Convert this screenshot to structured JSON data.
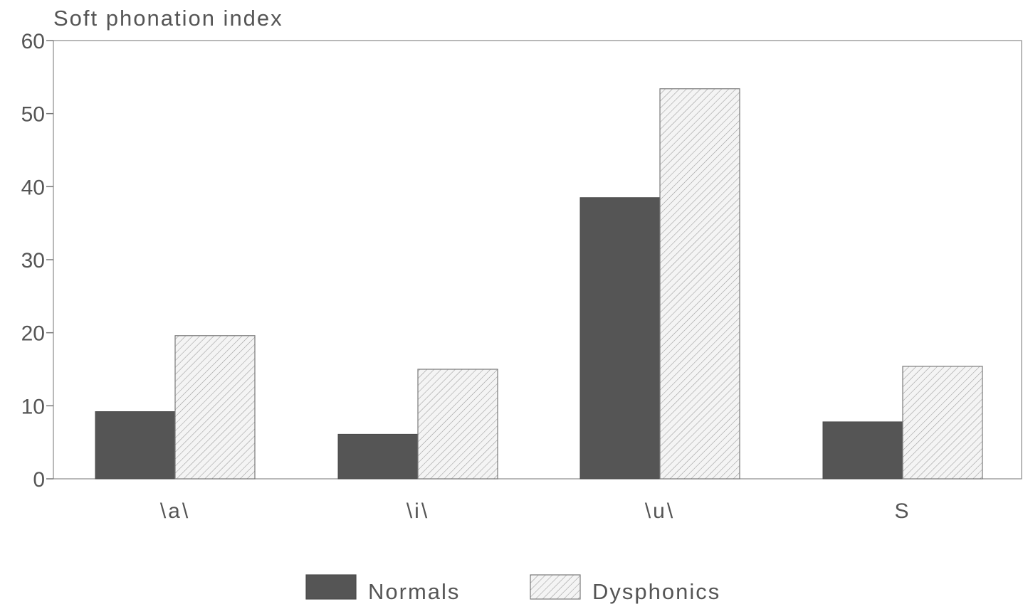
{
  "chart_data": {
    "type": "bar",
    "title": "Soft phonation index",
    "xlabel": "",
    "ylabel": "",
    "categories": [
      "\\a\\",
      "\\i\\",
      "\\u\\",
      "S"
    ],
    "series": [
      {
        "name": "Normals",
        "values": [
          9.2,
          6.1,
          38.5,
          7.8
        ],
        "color": "#555555",
        "pattern": "solid"
      },
      {
        "name": "Dysphonics",
        "values": [
          19.6,
          15.0,
          53.4,
          15.4
        ],
        "color": "#f2f2f2",
        "pattern": "diagonal-hatch"
      }
    ],
    "ylim": [
      0,
      60
    ],
    "yticks": [
      0,
      10,
      20,
      30,
      40,
      50,
      60
    ],
    "grid": false,
    "legend_position": "bottom-center"
  }
}
